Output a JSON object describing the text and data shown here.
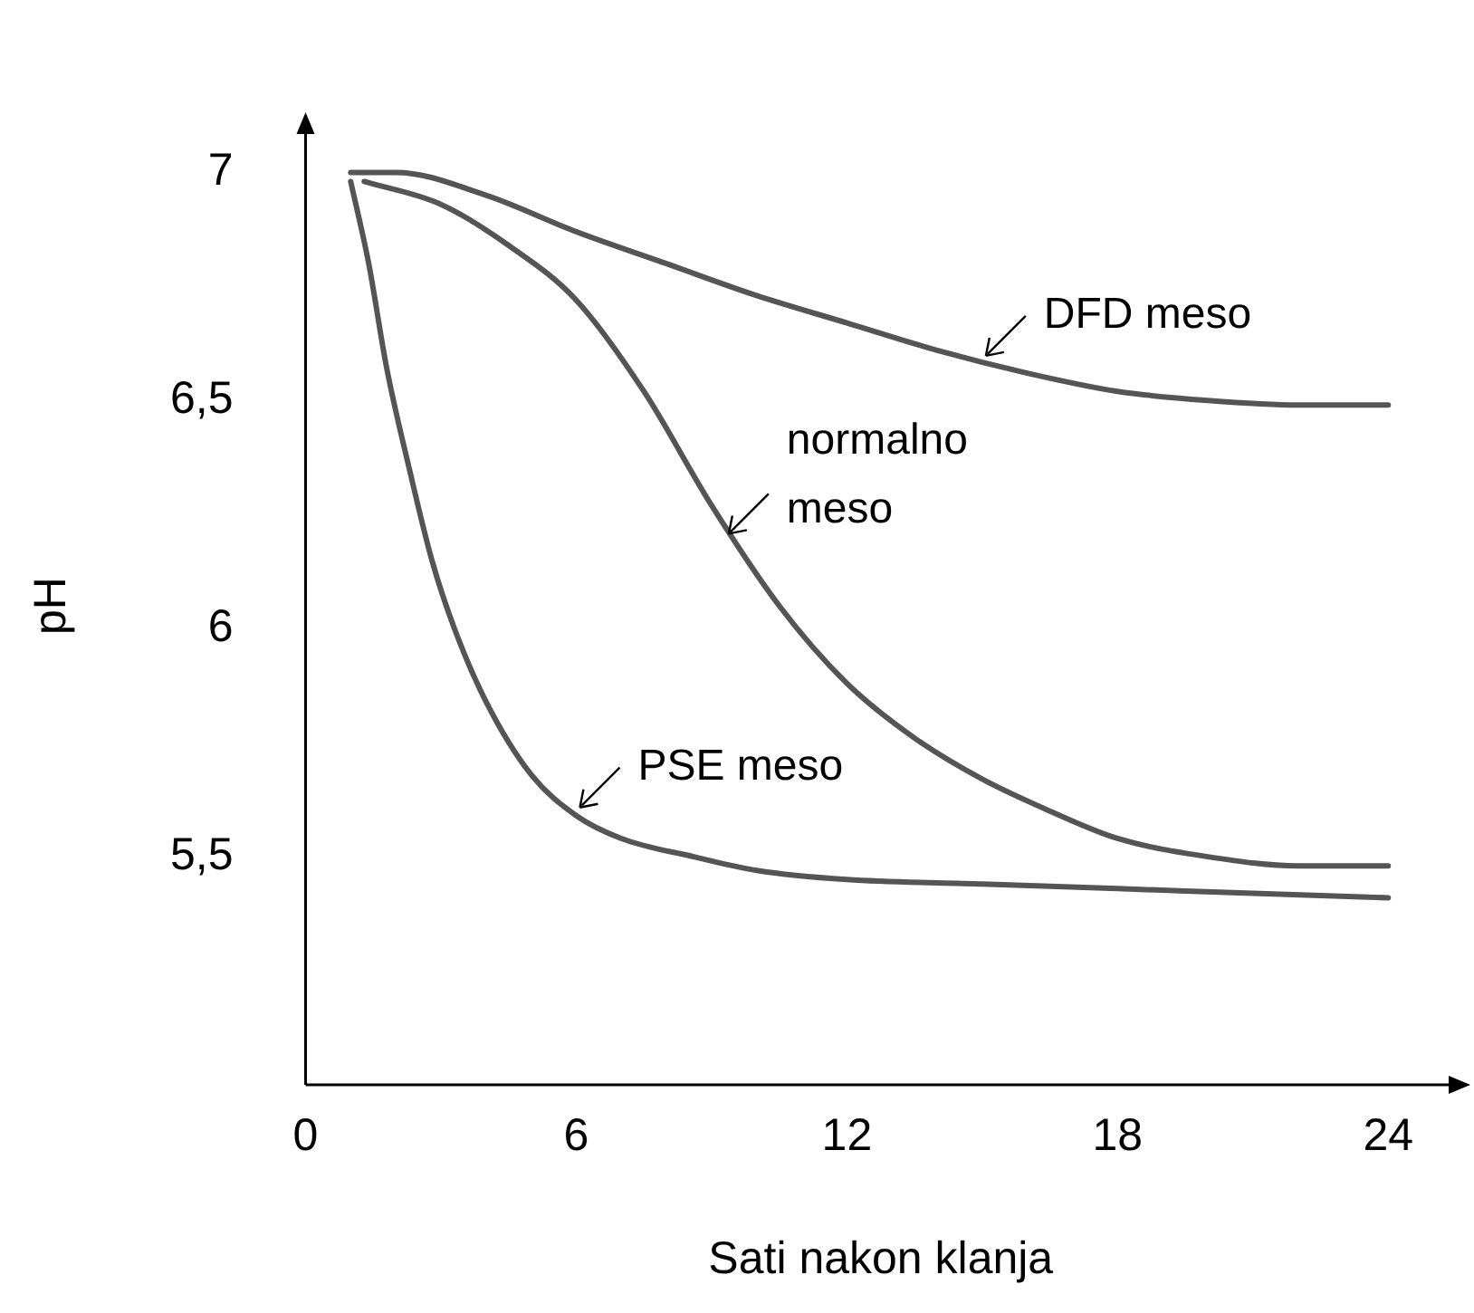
{
  "chart_data": {
    "type": "line",
    "xlabel": "Sati nakon klanja",
    "ylabel": "pH",
    "xlim": [
      0,
      25.5
    ],
    "xticks": [
      0,
      6,
      12,
      18,
      24
    ],
    "ylim": [
      5,
      7.1
    ],
    "yticks": [
      {
        "value": 5.5,
        "label": "5,5"
      },
      {
        "value": 6,
        "label": "6"
      },
      {
        "value": 6.5,
        "label": "6,5"
      },
      {
        "value": 7,
        "label": "7"
      }
    ],
    "grid": false,
    "legend": false,
    "marker": "none",
    "line_style": "solid",
    "series": [
      {
        "color": "#555555",
        "x": [
          1,
          2,
          4,
          6,
          8,
          10,
          12,
          14,
          16,
          18,
          20,
          22,
          24
        ],
        "values": [
          7.0,
          7.0,
          6.95,
          6.87,
          6.8,
          6.73,
          6.67,
          6.61,
          6.56,
          6.52,
          6.5,
          6.49,
          6.49
        ]
      },
      {
        "color": "#555555",
        "x": [
          1.3,
          3,
          4.5,
          6,
          7.5,
          9,
          10.5,
          12,
          13.5,
          15,
          16.5,
          18,
          20,
          22,
          24
        ],
        "values": [
          6.98,
          6.93,
          6.84,
          6.72,
          6.52,
          6.27,
          6.05,
          5.88,
          5.76,
          5.67,
          5.6,
          5.54,
          5.5,
          5.48,
          5.48
        ]
      },
      {
        "color": "#555555",
        "x": [
          1,
          1.4,
          1.8,
          2.3,
          2.8,
          3.3,
          4,
          5,
          6,
          7,
          8.6,
          10,
          12,
          15,
          18,
          21,
          24
        ],
        "values": [
          6.98,
          6.8,
          6.57,
          6.35,
          6.15,
          6.0,
          5.84,
          5.68,
          5.59,
          5.54,
          5.5,
          5.47,
          5.45,
          5.44,
          5.43,
          5.42,
          5.41
        ]
      }
    ],
    "annotations": [
      {
        "text": "DFD meso",
        "x": 15,
        "y": 6.59
      },
      {
        "text": "normalno meso",
        "x": 9.3,
        "y": 6.2
      },
      {
        "text": "PSE meso",
        "x": 6,
        "y": 5.6
      }
    ]
  }
}
